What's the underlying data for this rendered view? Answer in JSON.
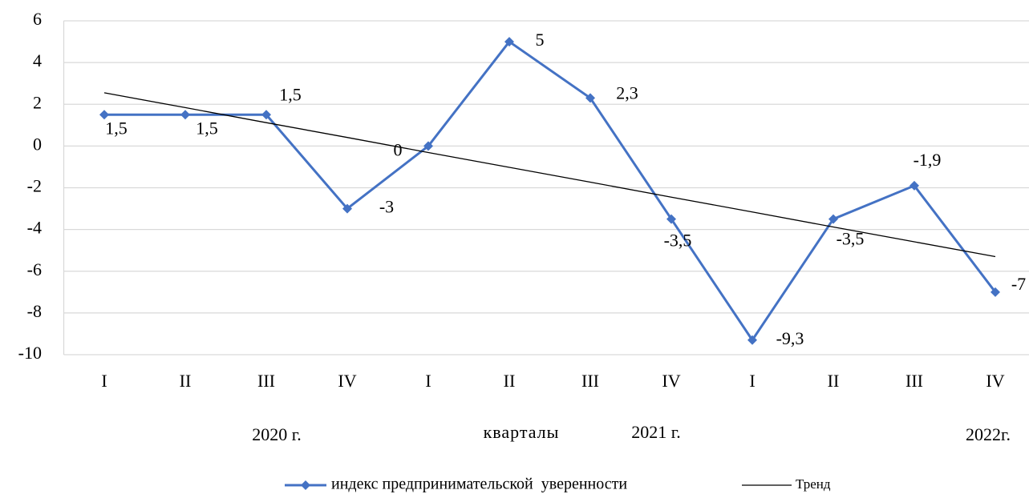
{
  "chart_data": {
    "type": "line",
    "x_label": "кварталы",
    "annotations": [
      "2020 г.",
      "2021 г.",
      "2022г."
    ],
    "categories": [
      "I",
      "II",
      "III",
      "IV",
      "I",
      "II",
      "III",
      "IV",
      "I",
      "II",
      "III",
      "IV"
    ],
    "series": [
      {
        "name": "индекс предпринимательской  уверенности",
        "color": "#4472c4",
        "values": [
          1.5,
          1.5,
          1.5,
          -3,
          0,
          5,
          2.3,
          -3.5,
          -9.3,
          -3.5,
          -1.9,
          -7
        ],
        "value_labels": [
          "1,5",
          "1,5",
          "1,5",
          "-3",
          "0",
          "5",
          "2,3",
          "-3,5",
          "-9,3",
          "-3,5",
          "-1,9",
          "-7"
        ]
      },
      {
        "name": "Тренд",
        "color": "#000000",
        "values": [
          2.55,
          1.84,
          1.12,
          0.41,
          -0.31,
          -1.02,
          -1.73,
          -2.45,
          -3.16,
          -3.88,
          -4.59,
          -5.3
        ]
      }
    ],
    "ylim": [
      -10,
      6
    ],
    "yticks": [
      -10,
      -8,
      -6,
      -4,
      -2,
      0,
      2,
      4,
      6
    ],
    "grid": true
  }
}
